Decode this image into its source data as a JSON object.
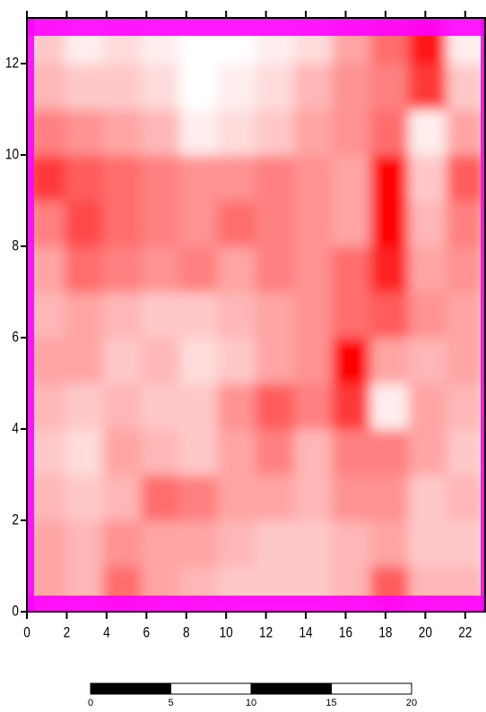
{
  "chart_data": {
    "type": "heatmap",
    "xlim": [
      0,
      23
    ],
    "xticks": [
      0,
      2,
      4,
      6,
      8,
      10,
      12,
      14,
      16,
      18,
      20,
      22
    ],
    "ylim": [
      0,
      13
    ],
    "yticks": [
      0,
      2,
      4,
      6,
      8,
      10,
      12
    ],
    "colors": [
      "#ffffff",
      "#ff0000"
    ],
    "values": [
      [
        40,
        35,
        55,
        40,
        35,
        30,
        30,
        30,
        35,
        60,
        35,
        35
      ],
      [
        40,
        35,
        45,
        40,
        40,
        35,
        30,
        30,
        35,
        40,
        30,
        30
      ],
      [
        35,
        30,
        35,
        55,
        50,
        40,
        40,
        35,
        45,
        45,
        30,
        35
      ],
      [
        30,
        25,
        40,
        35,
        30,
        40,
        50,
        35,
        50,
        50,
        40,
        30
      ],
      [
        35,
        30,
        35,
        30,
        30,
        45,
        60,
        50,
        70,
        20,
        40,
        35
      ],
      [
        40,
        40,
        30,
        35,
        25,
        30,
        40,
        45,
        85,
        40,
        35,
        40
      ],
      [
        35,
        40,
        35,
        30,
        30,
        35,
        40,
        45,
        55,
        60,
        45,
        40
      ],
      [
        40,
        55,
        50,
        45,
        50,
        40,
        50,
        45,
        55,
        75,
        40,
        45
      ],
      [
        50,
        65,
        55,
        50,
        45,
        55,
        50,
        45,
        40,
        85,
        35,
        50
      ],
      [
        70,
        60,
        55,
        50,
        45,
        45,
        50,
        45,
        40,
        85,
        30,
        60
      ],
      [
        50,
        45,
        40,
        35,
        20,
        25,
        30,
        40,
        45,
        55,
        20,
        40
      ],
      [
        35,
        30,
        30,
        25,
        15,
        20,
        25,
        35,
        45,
        50,
        70,
        30
      ],
      [
        30,
        20,
        25,
        20,
        15,
        15,
        20,
        25,
        40,
        55,
        80,
        20
      ]
    ],
    "scale_bar": {
      "ticks": [
        0,
        5,
        10,
        15,
        20
      ]
    }
  }
}
